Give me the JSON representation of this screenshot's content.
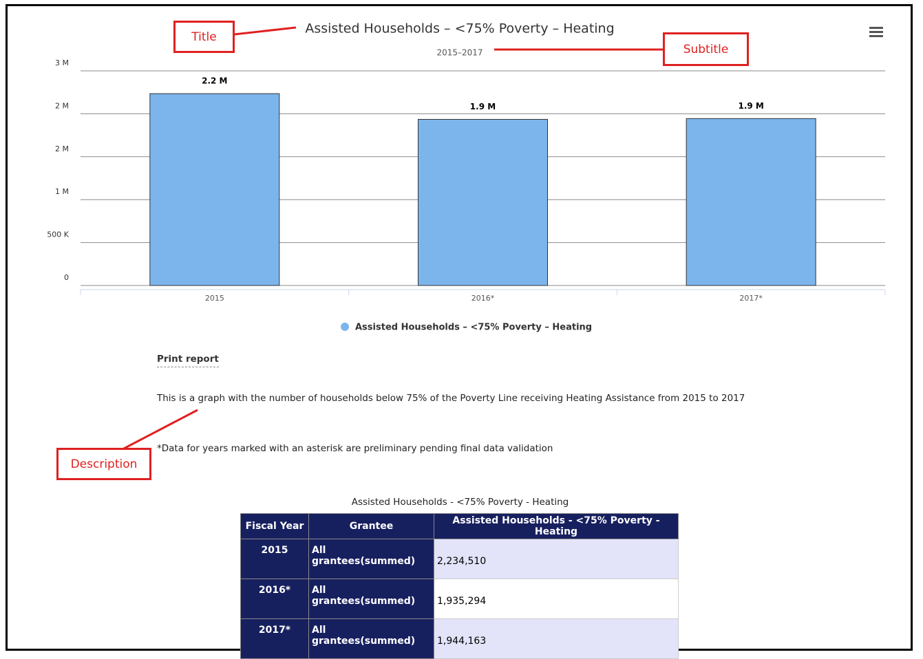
{
  "chart_data": {
    "type": "bar",
    "title": "Assisted Households – <75% Poverty – Heating",
    "subtitle": "2015–2017",
    "categories": [
      "2015",
      "2016*",
      "2017*"
    ],
    "series": [
      {
        "name": "Assisted Households – <75% Poverty – Heating",
        "color": "#7cb5ec",
        "values": [
          2234510,
          1935294,
          1944163
        ],
        "value_labels": [
          "2.2 M",
          "1.9 M",
          "1.9 M"
        ]
      }
    ],
    "ylim": [
      0,
      2500000
    ],
    "yticks": [
      0,
      {
        "value": 500000,
        "label": "500 K"
      },
      {
        "value": 1000000,
        "label": "1 M"
      },
      {
        "value": 1500000,
        "label": "2 M"
      },
      {
        "value": 2000000,
        "label": "2 M"
      },
      {
        "value": 2500000,
        "label": "3 M"
      }
    ],
    "grid": true,
    "legend": "bottom"
  },
  "annotations": {
    "title": "Title",
    "subtitle": "Subtitle",
    "description": "Description"
  },
  "print_link": "Print report",
  "description": "This is a graph with the number of households below 75% of the Poverty Line receiving Heating Assistance from 2015 to 2017",
  "note": "*Data for years marked with an asterisk are preliminary pending final data validation",
  "table": {
    "caption": "Assisted Households - <75% Poverty - Heating",
    "columns": [
      "Fiscal Year",
      "Grantee",
      "Assisted Households - <75% Poverty - Heating"
    ],
    "rows": [
      [
        "2015",
        "All grantees(summed)",
        "2,234,510"
      ],
      [
        "2016*",
        "All grantees(summed)",
        "1,935,294"
      ],
      [
        "2017*",
        "All grantees(summed)",
        "1,944,163"
      ]
    ]
  }
}
